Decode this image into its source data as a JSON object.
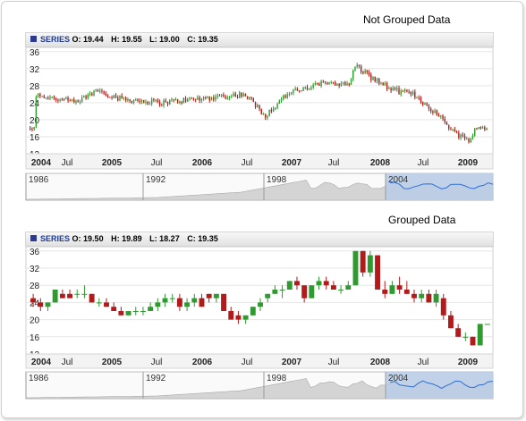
{
  "chart_data": [
    {
      "type": "candlestick",
      "title": "Not Grouped Data",
      "legend": {
        "name": "SERIES",
        "labels": {
          "o": "O:",
          "h": "H:",
          "l": "L:",
          "c": "C:"
        },
        "o": "19.44",
        "h": "19.55",
        "l": "19.00",
        "c": "19.35"
      },
      "ylim": [
        12,
        37
      ],
      "yticks": [
        12,
        16,
        20,
        24,
        28,
        32,
        36
      ],
      "xticks": [
        "2004",
        "Jul",
        "2005",
        "Jul",
        "2006",
        "Jul",
        "2007",
        "Jul",
        "2008",
        "Jul",
        "2009"
      ],
      "x_bold": [
        true,
        false,
        true,
        false,
        true,
        false,
        true,
        false,
        true,
        false,
        true
      ],
      "scroller_labels": [
        "1986",
        "1992",
        "1998",
        "2004"
      ],
      "colors": {
        "up": "#2f9a2f",
        "down": "#b21b1b",
        "scroller_fill": "#d4d4d4",
        "selection_fill": "#b9cce6",
        "selection_line": "#2f6fd3"
      },
      "x": [
        2004.0,
        2004.5,
        2004.75,
        2005.0,
        2005.5,
        2006.0,
        2006.5,
        2006.75,
        2007.0,
        2007.5,
        2007.75,
        2007.8,
        2008.0,
        2008.25,
        2008.5,
        2008.75,
        2009.0,
        2009.15,
        2009.25
      ],
      "close": [
        26,
        24,
        27,
        25,
        24,
        25,
        26,
        21,
        26,
        29,
        28,
        33,
        30,
        27,
        26,
        22,
        17,
        15,
        18
      ]
    },
    {
      "type": "candlestick",
      "title": "Grouped Data",
      "legend": {
        "name": "SERIES",
        "labels": {
          "o": "O:",
          "h": "H:",
          "l": "L:",
          "c": "C:"
        },
        "o": "19.50",
        "h": "19.89",
        "l": "18.27",
        "c": "19.35"
      },
      "ylim": [
        12,
        37
      ],
      "yticks": [
        12,
        16,
        20,
        24,
        28,
        32,
        36
      ],
      "xticks": [
        "2004",
        "Jul",
        "2005",
        "Jul",
        "2006",
        "Jul",
        "2007",
        "Jul",
        "2008",
        "Jul",
        "2009"
      ],
      "x_bold": [
        true,
        false,
        true,
        false,
        true,
        false,
        true,
        false,
        true,
        false,
        true
      ],
      "scroller_labels": [
        "1986",
        "1992",
        "1998",
        "2004"
      ],
      "colors": {
        "up": "#2f9a2f",
        "down": "#b21b1b",
        "scroller_fill": "#d4d4d4",
        "selection_fill": "#b9cce6",
        "selection_line": "#2f6fd3"
      },
      "candles": [
        {
          "o": 25,
          "h": 26,
          "l": 23,
          "c": 24
        },
        {
          "o": 24,
          "h": 25,
          "l": 22,
          "c": 23
        },
        {
          "o": 23,
          "h": 24,
          "l": 22,
          "c": 24
        },
        {
          "o": 24,
          "h": 27,
          "l": 24,
          "c": 27
        },
        {
          "o": 26,
          "h": 27,
          "l": 25,
          "c": 25
        },
        {
          "o": 26,
          "h": 27,
          "l": 25,
          "c": 25
        },
        {
          "o": 26,
          "h": 27,
          "l": 25,
          "c": 26
        },
        {
          "o": 26,
          "h": 28,
          "l": 25,
          "c": 26
        },
        {
          "o": 26,
          "h": 26,
          "l": 24,
          "c": 24
        },
        {
          "o": 24,
          "h": 25,
          "l": 23,
          "c": 24
        },
        {
          "o": 24,
          "h": 25,
          "l": 23,
          "c": 23
        },
        {
          "o": 23,
          "h": 24,
          "l": 22,
          "c": 22
        },
        {
          "o": 22,
          "h": 23,
          "l": 21,
          "c": 21
        },
        {
          "o": 21,
          "h": 22,
          "l": 21,
          "c": 22
        },
        {
          "o": 22,
          "h": 23,
          "l": 21,
          "c": 22
        },
        {
          "o": 22,
          "h": 23,
          "l": 21,
          "c": 22
        },
        {
          "o": 22,
          "h": 24,
          "l": 22,
          "c": 23
        },
        {
          "o": 23,
          "h": 25,
          "l": 22,
          "c": 24
        },
        {
          "o": 24,
          "h": 26,
          "l": 23,
          "c": 25
        },
        {
          "o": 25,
          "h": 26,
          "l": 24,
          "c": 25
        },
        {
          "o": 25,
          "h": 26,
          "l": 22,
          "c": 23
        },
        {
          "o": 23,
          "h": 25,
          "l": 22,
          "c": 24
        },
        {
          "o": 24,
          "h": 26,
          "l": 23,
          "c": 25
        },
        {
          "o": 25,
          "h": 26,
          "l": 23,
          "c": 23
        },
        {
          "o": 26,
          "h": 26,
          "l": 24,
          "c": 25
        },
        {
          "o": 25,
          "h": 26,
          "l": 24,
          "c": 26
        },
        {
          "o": 26,
          "h": 26,
          "l": 22,
          "c": 22
        },
        {
          "o": 22,
          "h": 23,
          "l": 20,
          "c": 20
        },
        {
          "o": 21,
          "h": 22,
          "l": 19,
          "c": 20
        },
        {
          "o": 20,
          "h": 21,
          "l": 19,
          "c": 21
        },
        {
          "o": 21,
          "h": 23,
          "l": 21,
          "c": 23
        },
        {
          "o": 23,
          "h": 25,
          "l": 22,
          "c": 24
        },
        {
          "o": 25,
          "h": 26,
          "l": 24,
          "c": 26
        },
        {
          "o": 26,
          "h": 28,
          "l": 26,
          "c": 27
        },
        {
          "o": 27,
          "h": 28,
          "l": 25,
          "c": 27
        },
        {
          "o": 27,
          "h": 29,
          "l": 27,
          "c": 29
        },
        {
          "o": 29,
          "h": 30,
          "l": 27,
          "c": 28
        },
        {
          "o": 28,
          "h": 28,
          "l": 24,
          "c": 25
        },
        {
          "o": 25,
          "h": 28,
          "l": 25,
          "c": 28
        },
        {
          "o": 28,
          "h": 30,
          "l": 27,
          "c": 29
        },
        {
          "o": 29,
          "h": 30,
          "l": 27,
          "c": 28
        },
        {
          "o": 28,
          "h": 29,
          "l": 27,
          "c": 27
        },
        {
          "o": 27,
          "h": 28,
          "l": 26,
          "c": 27
        },
        {
          "o": 27,
          "h": 29,
          "l": 27,
          "c": 28
        },
        {
          "o": 28,
          "h": 36,
          "l": 28,
          "c": 36
        },
        {
          "o": 36,
          "h": 36,
          "l": 30,
          "c": 31
        },
        {
          "o": 31,
          "h": 36,
          "l": 30,
          "c": 35
        },
        {
          "o": 35,
          "h": 35,
          "l": 27,
          "c": 27
        },
        {
          "o": 27,
          "h": 29,
          "l": 25,
          "c": 26
        },
        {
          "o": 26,
          "h": 29,
          "l": 26,
          "c": 28
        },
        {
          "o": 28,
          "h": 30,
          "l": 26,
          "c": 27
        },
        {
          "o": 27,
          "h": 29,
          "l": 26,
          "c": 26
        },
        {
          "o": 26,
          "h": 27,
          "l": 24,
          "c": 25
        },
        {
          "o": 25,
          "h": 27,
          "l": 24,
          "c": 26
        },
        {
          "o": 26,
          "h": 27,
          "l": 24,
          "c": 24
        },
        {
          "o": 24,
          "h": 27,
          "l": 23,
          "c": 26
        },
        {
          "o": 25,
          "h": 26,
          "l": 20,
          "c": 21
        },
        {
          "o": 21,
          "h": 22,
          "l": 18,
          "c": 18
        },
        {
          "o": 18,
          "h": 19,
          "l": 16,
          "c": 16
        },
        {
          "o": 16,
          "h": 17,
          "l": 15,
          "c": 16
        },
        {
          "o": 16,
          "h": 16,
          "l": 14,
          "c": 14
        },
        {
          "o": 14,
          "h": 19,
          "l": 14,
          "c": 19
        },
        {
          "o": 19,
          "h": 19,
          "l": 19,
          "c": 19
        }
      ]
    }
  ]
}
